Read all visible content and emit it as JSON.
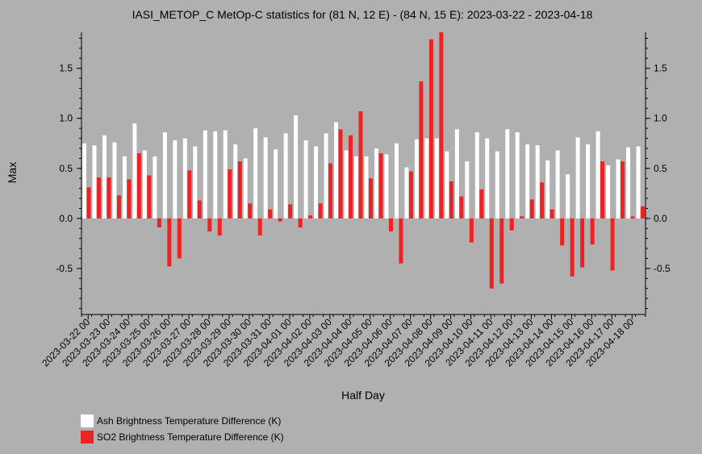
{
  "chart_data": {
    "type": "bar",
    "title": "IASI_METOP_C MetOp-C statistics for (81 N, 12 E) - (84 N, 15 E): 2023-03-22 - 2023-04-18",
    "xlabel": "Half Day",
    "ylabel": "Max",
    "ylim": [
      -0.96,
      1.86
    ],
    "yticks": [
      -0.5,
      0.0,
      0.5,
      1.0,
      1.5
    ],
    "ytick_labels": [
      "-0.5",
      "0.0",
      "0.5",
      "1.0",
      "1.5"
    ],
    "grid": false,
    "legend_position": "bottom-left",
    "tick_labels": [
      "2023-03-22 00",
      "2023-03-23 00",
      "2023-03-24 00",
      "2023-03-25 00",
      "2023-03-26 00",
      "2023-03-27 00",
      "2023-03-28 00",
      "2023-03-29 00",
      "2023-03-30 00",
      "2023-03-31 00",
      "2023-04-01 00",
      "2023-04-02 00",
      "2023-04-03 00",
      "2023-04-04 00",
      "2023-04-05 00",
      "2023-04-06 00",
      "2023-04-07 00",
      "2023-04-08 00",
      "2023-04-09 00",
      "2023-04-10 00",
      "2023-04-11 00",
      "2023-04-12 00",
      "2023-04-13 00",
      "2023-04-14 00",
      "2023-04-15 00",
      "2023-04-16 00",
      "2023-04-17 00",
      "2023-04-18 00"
    ],
    "series": [
      {
        "name": "Ash Brightness Temperature Difference (K)",
        "color": "#ffffff",
        "values": [
          0.75,
          0.73,
          0.83,
          0.76,
          0.62,
          0.95,
          0.68,
          0.62,
          0.86,
          0.78,
          0.8,
          0.72,
          0.88,
          0.87,
          0.88,
          0.74,
          0.6,
          0.9,
          0.81,
          0.69,
          0.85,
          1.03,
          0.78,
          0.72,
          0.85,
          0.96,
          0.68,
          0.62,
          0.62,
          0.7,
          0.64,
          0.75,
          0.51,
          0.79,
          0.8,
          0.8,
          0.67,
          0.89,
          0.57,
          0.86,
          0.8,
          0.67,
          0.89,
          0.86,
          0.74,
          0.73,
          0.58,
          0.68,
          0.44,
          0.81,
          0.74,
          0.87,
          0.53,
          0.59,
          0.71,
          0.72
        ]
      },
      {
        "name": "SO2 Brightness Temperature Difference (K)",
        "color": "#ee2222",
        "values": [
          0.31,
          0.41,
          0.41,
          0.23,
          0.39,
          0.65,
          0.43,
          -0.09,
          -0.48,
          -0.4,
          0.48,
          0.18,
          -0.13,
          -0.17,
          0.49,
          0.57,
          0.15,
          -0.17,
          0.09,
          -0.03,
          0.14,
          -0.09,
          0.03,
          0.15,
          0.55,
          0.89,
          0.83,
          1.07,
          0.4,
          0.65,
          -0.13,
          -0.45,
          0.47,
          1.37,
          1.79,
          1.86,
          0.37,
          0.22,
          -0.24,
          0.29,
          -0.7,
          -0.65,
          -0.12,
          0.02,
          0.19,
          0.36,
          0.09,
          -0.27,
          -0.58,
          -0.49,
          -0.26,
          0.57,
          -0.52,
          0.57,
          0.02,
          0.12
        ]
      }
    ]
  }
}
